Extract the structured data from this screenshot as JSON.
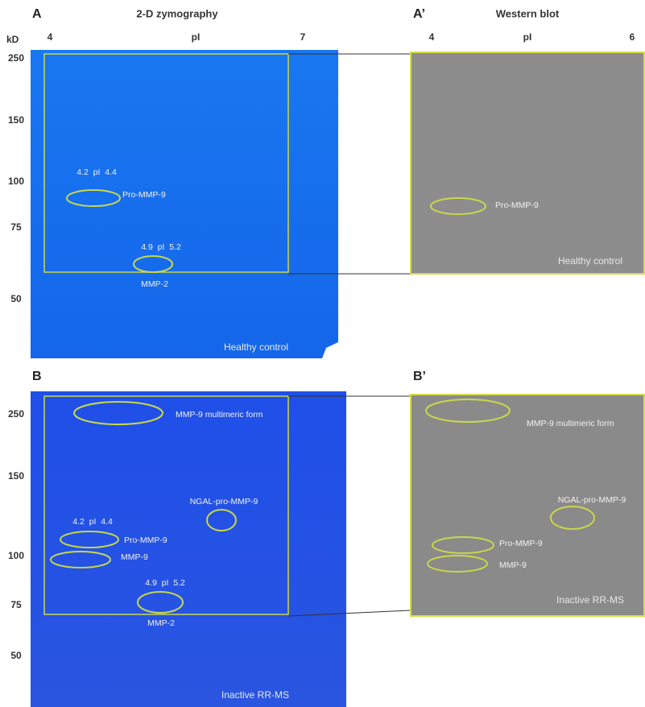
{
  "panel_a": {
    "label": "A",
    "title": "2-D zymography",
    "y_axis_label": "kD",
    "x_ticks": [
      "4",
      "pI",
      "7"
    ],
    "y_ticks": [
      "250",
      "150",
      "100",
      "75",
      "50"
    ],
    "annotations": [
      "4.2  pI  4.4",
      "Pro-MMP-9",
      "4.9  pI  5.2",
      "MMP-2"
    ],
    "condition": "Healthy control"
  },
  "panel_a_prime": {
    "label": "A’",
    "title": "Western blot",
    "x_ticks": [
      "4",
      "pI",
      "6"
    ],
    "annotations": [
      "Pro-MMP-9"
    ],
    "condition": "Healthy control"
  },
  "panel_b": {
    "label": "B",
    "y_ticks": [
      "250",
      "150",
      "100",
      "75",
      "50"
    ],
    "annotations": [
      "MMP-9 multimeric form",
      "NGAL-pro-MMP-9",
      "4.2  pI  4.4",
      "Pro-MMP-9",
      "MMP-9",
      "4.9  pI  5.2",
      "MMP-2"
    ],
    "condition": "Inactive RR-MS"
  },
  "panel_b_prime": {
    "label": "B’",
    "annotations": [
      "MMP-9 multimeric form",
      "NGAL-pro-MMP-9",
      "Pro-MMP-9",
      "MMP-9"
    ],
    "condition": "Inactive RR-MS"
  }
}
